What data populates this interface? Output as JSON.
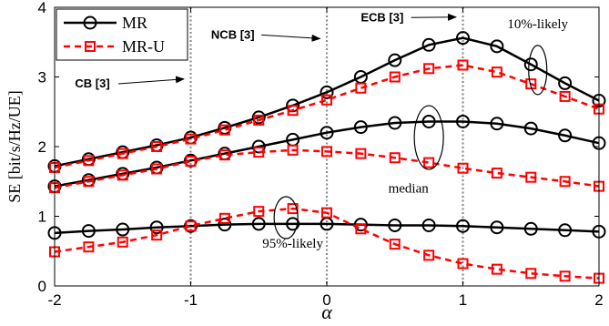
{
  "chart_data": {
    "type": "line",
    "xlabel": "α",
    "ylabel": "SE [bit/s/Hz/UE]",
    "xlim": [
      -2,
      2
    ],
    "ylim": [
      0,
      4
    ],
    "xticks": [
      "-2",
      "-1",
      "0",
      "1",
      "2"
    ],
    "yticks": [
      "0",
      "1",
      "2",
      "3",
      "4"
    ],
    "x": [
      -2,
      -1.75,
      -1.5,
      -1.25,
      -1,
      -0.75,
      -0.5,
      -0.25,
      0,
      0.25,
      0.5,
      0.75,
      1,
      1.25,
      1.5,
      1.75,
      2
    ],
    "legend": {
      "position": "top-left",
      "entries": [
        {
          "label": "MR",
          "color": "#000000",
          "dash": "solid",
          "marker": "circle"
        },
        {
          "label": "MR-U",
          "color": "#ff0000",
          "dash": "dashed",
          "marker": "square"
        }
      ]
    },
    "series": [
      {
        "group": "10%-likely",
        "style": "MR",
        "values": [
          1.72,
          1.82,
          1.92,
          2.02,
          2.13,
          2.27,
          2.42,
          2.59,
          2.78,
          3.0,
          3.24,
          3.46,
          3.56,
          3.44,
          3.18,
          2.91,
          2.66
        ]
      },
      {
        "group": "10%-likely",
        "style": "MR-U",
        "values": [
          1.7,
          1.8,
          1.9,
          2.0,
          2.11,
          2.24,
          2.38,
          2.52,
          2.67,
          2.84,
          3.0,
          3.12,
          3.17,
          3.07,
          2.9,
          2.72,
          2.54
        ]
      },
      {
        "group": "median",
        "style": "MR",
        "values": [
          1.43,
          1.52,
          1.61,
          1.7,
          1.8,
          1.9,
          2.0,
          2.1,
          2.2,
          2.28,
          2.34,
          2.36,
          2.36,
          2.33,
          2.26,
          2.16,
          2.05
        ]
      },
      {
        "group": "median",
        "style": "MR-U",
        "values": [
          1.41,
          1.5,
          1.59,
          1.68,
          1.79,
          1.88,
          1.92,
          1.95,
          1.93,
          1.9,
          1.84,
          1.77,
          1.69,
          1.62,
          1.56,
          1.5,
          1.43
        ]
      },
      {
        "group": "95%-likely",
        "style": "MR",
        "values": [
          0.76,
          0.79,
          0.81,
          0.84,
          0.86,
          0.88,
          0.89,
          0.89,
          0.89,
          0.88,
          0.87,
          0.87,
          0.86,
          0.84,
          0.82,
          0.8,
          0.78
        ]
      },
      {
        "group": "95%-likely",
        "style": "MR-U",
        "values": [
          0.49,
          0.56,
          0.63,
          0.73,
          0.86,
          0.97,
          1.07,
          1.11,
          1.05,
          0.82,
          0.6,
          0.44,
          0.32,
          0.24,
          0.18,
          0.14,
          0.11
        ]
      }
    ],
    "vlines": [
      -1,
      0,
      1
    ],
    "annotations": [
      {
        "text": "CB [3]",
        "x": -1.85,
        "y": 2.85,
        "arrow_to": [
          -1.05,
          2.97
        ]
      },
      {
        "text": "NCB [3]",
        "x": -0.85,
        "y": 3.55,
        "arrow_to": [
          -0.05,
          3.55
        ]
      },
      {
        "text": "ECB [3]",
        "x": 0.25,
        "y": 3.8,
        "arrow_to": [
          0.95,
          3.86
        ]
      },
      {
        "text": "10%-likely",
        "x": 1.55,
        "y": 3.7,
        "ellipse": [
          1.55,
          3.1
        ]
      },
      {
        "text": "median",
        "x": 0.6,
        "y": 1.34,
        "ellipse": [
          0.75,
          2.13
        ]
      },
      {
        "text": "95%-likely",
        "x": -0.25,
        "y": 0.55,
        "ellipse": [
          -0.3,
          0.98
        ]
      }
    ]
  }
}
